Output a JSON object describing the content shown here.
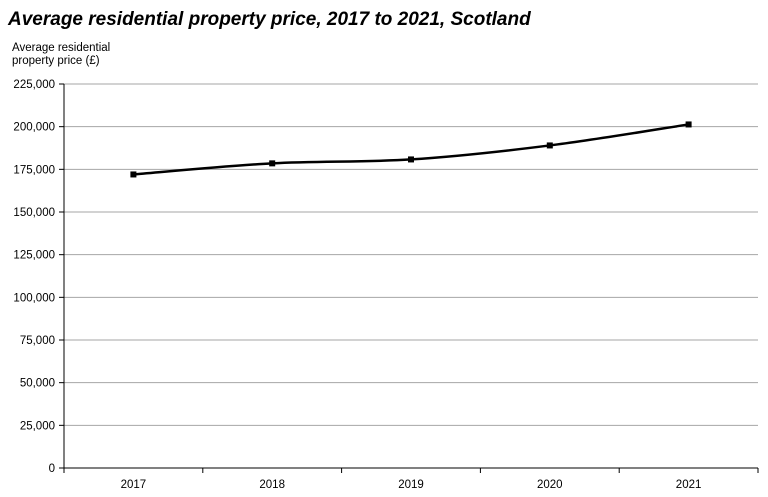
{
  "chart_data": {
    "type": "line",
    "title": "Average residential property price, 2017 to 2021, Scotland",
    "ylabel_lines": [
      "Average residential",
      "property price (£)"
    ],
    "xlabel": "",
    "categories": [
      "2017",
      "2018",
      "2019",
      "2020",
      "2021"
    ],
    "series": [
      {
        "values": [
          172000,
          178500,
          180800,
          189000,
          201300
        ]
      }
    ],
    "ylim": [
      0,
      225000
    ],
    "yticks": [
      0,
      25000,
      50000,
      75000,
      100000,
      125000,
      150000,
      175000,
      200000,
      225000
    ],
    "ytick_labels": [
      "0",
      "25,000",
      "50,000",
      "75,000",
      "100,000",
      "125,000",
      "150,000",
      "175,000",
      "200,000",
      "225,000"
    ],
    "grid": true,
    "legend": "none",
    "line_color": "#000000",
    "grid_color": "#a6a6a6"
  }
}
